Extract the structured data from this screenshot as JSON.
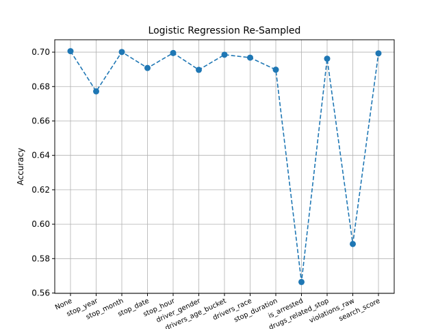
{
  "chart_data": {
    "type": "line",
    "title": "Logistic Regression Re-Sampled",
    "xlabel": "",
    "ylabel": "Accuracy",
    "categories": [
      "None",
      "stop_year",
      "stop_month",
      "stop_date",
      "stop_hour",
      "driver_gender",
      "drivers_age_bucket",
      "drivers_race",
      "stop_duration",
      "is_arrested",
      "drugs_related_stop",
      "violations_raw",
      "search_score"
    ],
    "series": [
      {
        "values": [
          0.7006,
          0.6772,
          0.7001,
          0.6908,
          0.6995,
          0.6897,
          0.6985,
          0.6968,
          0.6898,
          0.5664,
          0.6962,
          0.5885,
          0.6993
        ],
        "color": "#1f77b4",
        "line_style": "dashed",
        "marker": "circle"
      }
    ],
    "ylim": [
      0.5598,
      0.7072
    ],
    "yticks": [
      "0.56",
      "0.58",
      "0.60",
      "0.62",
      "0.64",
      "0.66",
      "0.68",
      "0.70"
    ],
    "grid": true,
    "legend": "none"
  }
}
